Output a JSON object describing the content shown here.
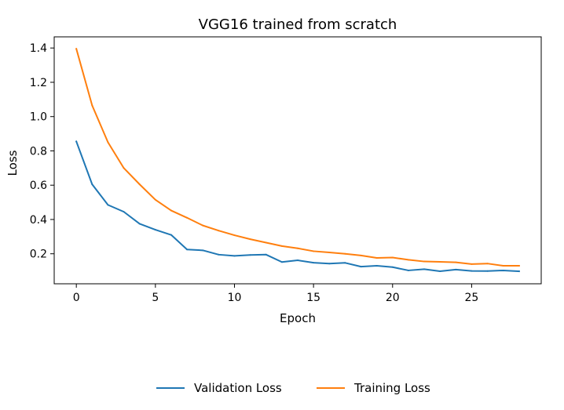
{
  "chart_data": {
    "type": "line",
    "title": "VGG16 trained from scratch",
    "xlabel": "Epoch",
    "ylabel": "Loss",
    "xlim": [
      -1.4,
      29.4
    ],
    "ylim": [
      0.025,
      1.465
    ],
    "xticks": [
      0,
      5,
      10,
      15,
      20,
      25
    ],
    "yticks": [
      0.2,
      0.4,
      0.6,
      0.8,
      1.0,
      1.2,
      1.4
    ],
    "grid": false,
    "legend_position": "bottom-center",
    "x": [
      0,
      1,
      2,
      3,
      4,
      5,
      6,
      7,
      8,
      9,
      10,
      11,
      12,
      13,
      14,
      15,
      16,
      17,
      18,
      19,
      20,
      21,
      22,
      23,
      24,
      25,
      26,
      27,
      28
    ],
    "series": [
      {
        "name": "Validation Loss",
        "color": "#1f77b4",
        "values": [
          0.855,
          0.605,
          0.485,
          0.445,
          0.375,
          0.34,
          0.31,
          0.225,
          0.22,
          0.195,
          0.188,
          0.193,
          0.195,
          0.152,
          0.162,
          0.148,
          0.143,
          0.147,
          0.125,
          0.13,
          0.122,
          0.103,
          0.11,
          0.098,
          0.108,
          0.1,
          0.099,
          0.103,
          0.098
        ]
      },
      {
        "name": "Training Loss",
        "color": "#ff7f0e",
        "values": [
          1.395,
          1.065,
          0.85,
          0.7,
          0.605,
          0.515,
          0.452,
          0.41,
          0.365,
          0.335,
          0.308,
          0.285,
          0.265,
          0.245,
          0.232,
          0.215,
          0.208,
          0.2,
          0.19,
          0.176,
          0.178,
          0.165,
          0.155,
          0.153,
          0.15,
          0.14,
          0.143,
          0.13,
          0.13
        ]
      }
    ]
  }
}
